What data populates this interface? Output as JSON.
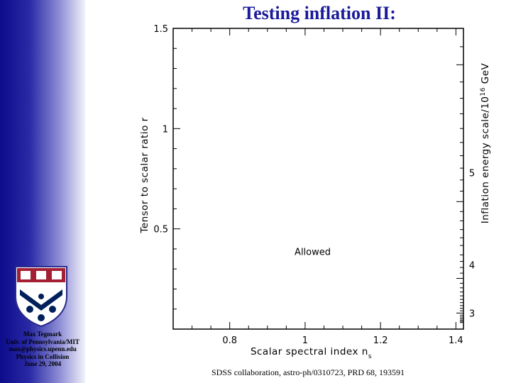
{
  "slide": {
    "title": "Testing inflation II:",
    "credits": [
      "Max Tegmark",
      "Univ. of Pennsylvania/MIT",
      "max@physics.upenn.edu",
      "Physics in Collision",
      "June 29, 2004"
    ],
    "source": "SDSS collaboration, astro-ph/0310723, PRD 68, 193591",
    "colors": {
      "title": "#1a1a9a",
      "sidebar_dark": "#0c0c8c",
      "shield_red": "#a31f34",
      "shield_blue": "#011f5b"
    }
  },
  "chart_data": {
    "type": "scatter",
    "xlabel": "Scalar spectral index n",
    "xlabel_subscript": "s",
    "ylabel": "Tensor to scalar ratio r",
    "right_label": "Inflation energy scale/10",
    "right_label_exponent": "16",
    "right_label_unit": "GeV",
    "xlim": [
      0.65,
      1.42
    ],
    "ylim": [
      0,
      1.5
    ],
    "x_ticks": [
      {
        "v": 0.8,
        "label": "0.8"
      },
      {
        "v": 1.0,
        "label": "1"
      },
      {
        "v": 1.2,
        "label": "1.2"
      },
      {
        "v": 1.4,
        "label": "1.4"
      }
    ],
    "y_ticks": [
      {
        "v": 0.5,
        "label": "0.5"
      },
      {
        "v": 1.0,
        "label": "1"
      },
      {
        "v": 1.5,
        "label": "1.5"
      }
    ],
    "right_axis_ticks": [
      {
        "r": 0.08,
        "label": "3"
      },
      {
        "r": 0.32,
        "label": "4"
      },
      {
        "r": 0.78,
        "label": "5"
      }
    ],
    "annotations": [
      {
        "text": "Allowed",
        "x": 1.02,
        "y": 0.37
      }
    ],
    "series": []
  }
}
